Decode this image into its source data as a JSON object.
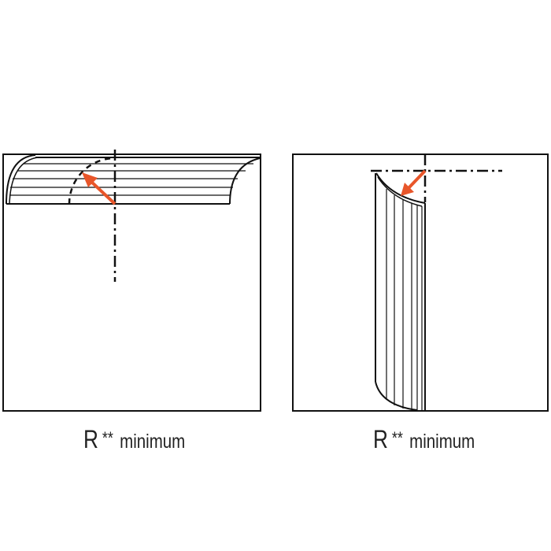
{
  "panels": [
    {
      "caption": {
        "symbol": "R",
        "mark": "**",
        "text": "minimum"
      }
    },
    {
      "caption": {
        "symbol": "R",
        "mark": "**",
        "text": "minimum"
      }
    }
  ],
  "colors": {
    "arrow": "#e8562a",
    "line": "#111111"
  }
}
